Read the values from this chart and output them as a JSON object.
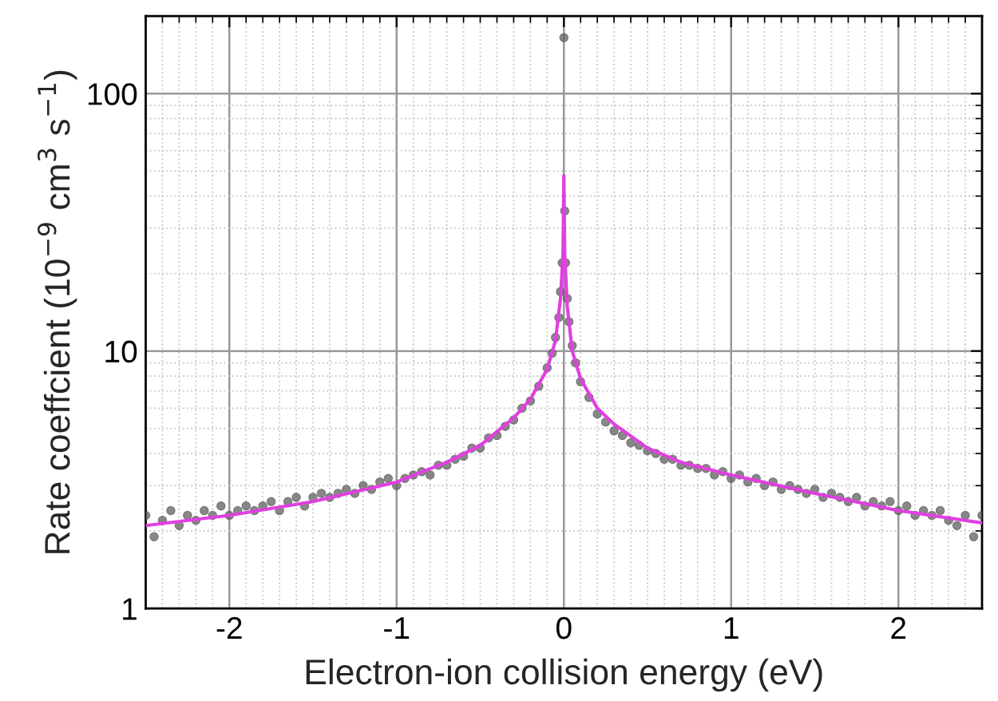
{
  "chart_data": {
    "type": "scatter",
    "xlabel": "Electron-ion collision energy (eV)",
    "ylabel": "Rate coeffcient (10$^{−9}$ cm$^{3}$ s$^{−1}$)",
    "xlim": [
      -2.5,
      2.5
    ],
    "ylim": [
      1,
      200
    ],
    "xticks": [
      -2,
      -1,
      0,
      1,
      2
    ],
    "yticks": [
      1,
      10,
      100
    ],
    "log": "y",
    "grid": true,
    "legend": false,
    "series": [
      {
        "color": "#606060",
        "marker": "circle",
        "x": [
          -2.5,
          -2.45,
          -2.4,
          -2.35,
          -2.3,
          -2.25,
          -2.2,
          -2.15,
          -2.1,
          -2.05,
          -2.0,
          -1.95,
          -1.9,
          -1.85,
          -1.8,
          -1.75,
          -1.7,
          -1.65,
          -1.6,
          -1.55,
          -1.5,
          -1.45,
          -1.4,
          -1.35,
          -1.3,
          -1.25,
          -1.2,
          -1.15,
          -1.1,
          -1.05,
          -1.0,
          -0.95,
          -0.9,
          -0.85,
          -0.8,
          -0.75,
          -0.7,
          -0.65,
          -0.6,
          -0.55,
          -0.5,
          -0.45,
          -0.4,
          -0.35,
          -0.3,
          -0.25,
          -0.2,
          -0.15,
          -0.1,
          -0.07,
          -0.05,
          -0.03,
          -0.02,
          -0.01,
          0.0,
          0.005,
          0.01,
          0.02,
          0.03,
          0.05,
          0.07,
          0.1,
          0.15,
          0.2,
          0.25,
          0.3,
          0.35,
          0.4,
          0.45,
          0.5,
          0.55,
          0.6,
          0.65,
          0.7,
          0.75,
          0.8,
          0.85,
          0.9,
          0.95,
          1.0,
          1.05,
          1.1,
          1.15,
          1.2,
          1.25,
          1.3,
          1.35,
          1.4,
          1.45,
          1.5,
          1.55,
          1.6,
          1.65,
          1.7,
          1.75,
          1.8,
          1.85,
          1.9,
          1.95,
          2.0,
          2.05,
          2.1,
          2.15,
          2.2,
          2.25,
          2.3,
          2.35,
          2.4,
          2.45,
          2.5
        ],
        "values": [
          2.3,
          1.9,
          2.2,
          2.4,
          2.1,
          2.3,
          2.2,
          2.4,
          2.3,
          2.5,
          2.3,
          2.4,
          2.5,
          2.4,
          2.5,
          2.6,
          2.4,
          2.6,
          2.7,
          2.5,
          2.7,
          2.8,
          2.7,
          2.8,
          2.9,
          2.8,
          3.0,
          2.9,
          3.1,
          3.2,
          3.0,
          3.2,
          3.3,
          3.4,
          3.3,
          3.6,
          3.6,
          3.8,
          3.9,
          4.2,
          4.2,
          4.6,
          4.7,
          5.1,
          5.4,
          6.0,
          6.4,
          7.3,
          8.6,
          9.8,
          11.3,
          13.5,
          17,
          22,
          165,
          35,
          22,
          16,
          13,
          10.5,
          9.0,
          7.6,
          6.6,
          5.7,
          5.3,
          4.9,
          4.7,
          4.4,
          4.3,
          4.1,
          4.0,
          3.8,
          3.8,
          3.6,
          3.6,
          3.5,
          3.5,
          3.3,
          3.4,
          3.2,
          3.3,
          3.1,
          3.2,
          3.0,
          3.1,
          2.9,
          3.0,
          2.9,
          2.8,
          2.9,
          2.7,
          2.8,
          2.7,
          2.6,
          2.7,
          2.5,
          2.6,
          2.5,
          2.6,
          2.4,
          2.5,
          2.3,
          2.4,
          2.3,
          2.4,
          2.2,
          2.1,
          2.3,
          1.9,
          2.3
        ]
      },
      {
        "type": "line",
        "color": "#e040e0",
        "line_style": "solid",
        "x": [
          -2.5,
          -2.0,
          -1.5,
          -1.0,
          -0.7,
          -0.5,
          -0.3,
          -0.2,
          -0.1,
          -0.05,
          -0.02,
          -0.005,
          0.0,
          0.005,
          0.02,
          0.05,
          0.1,
          0.2,
          0.3,
          0.5,
          0.7,
          1.0,
          1.5,
          2.0,
          2.5
        ],
        "values": [
          2.1,
          2.3,
          2.6,
          3.1,
          3.7,
          4.3,
          5.5,
          6.5,
          8.5,
          11,
          16,
          24,
          48,
          24,
          15,
          10,
          7.8,
          6,
          5.2,
          4.2,
          3.7,
          3.3,
          2.8,
          2.4,
          2.15
        ]
      }
    ]
  }
}
